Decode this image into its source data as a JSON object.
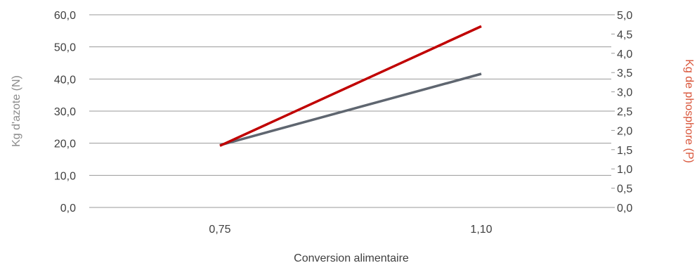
{
  "chart_data": {
    "type": "line",
    "title": "",
    "xlabel": "Conversion alimentaire",
    "ylabel_left": "Kg d'azote (N)",
    "ylabel_right": "Kg de phosphore (P)",
    "categories": [
      "0,75",
      "1,10"
    ],
    "y_left": {
      "ylim": [
        0,
        60
      ],
      "ticks": [
        "0,0",
        "10,0",
        "20,0",
        "30,0",
        "40,0",
        "50,0",
        "60,0"
      ]
    },
    "y_right": {
      "ylim": [
        0,
        5
      ],
      "ticks": [
        "0,0",
        "0,5",
        "1,0",
        "1,5",
        "2,0",
        "2,5",
        "3,0",
        "3,5",
        "4,0",
        "4,5",
        "5,0"
      ]
    },
    "series": [
      {
        "axis": "left",
        "values": [
          19.4,
          41.6
        ],
        "color": "#5f6670"
      },
      {
        "axis": "right",
        "values": [
          1.6,
          4.7
        ],
        "color": "#c00000"
      }
    ],
    "colors": {
      "grid": "#9a9a9a",
      "axis_title_left": "#8c8c8c",
      "axis_title_right": "#d9553a",
      "tick_text": "#404040"
    },
    "grid": true,
    "legend": "none"
  }
}
